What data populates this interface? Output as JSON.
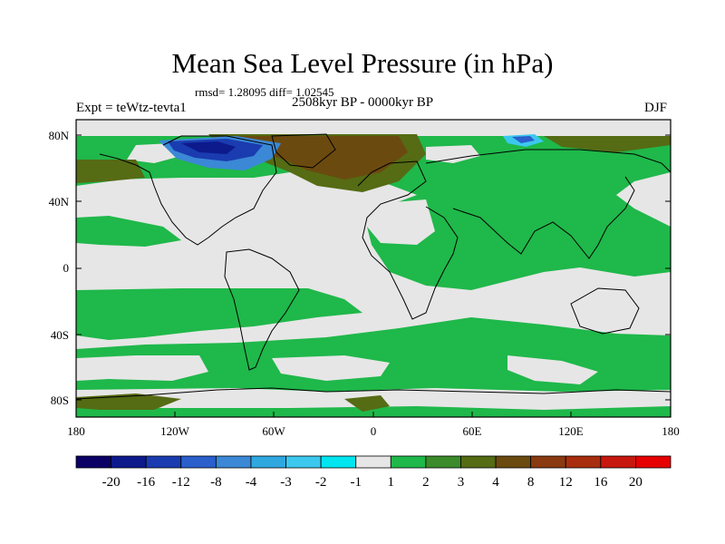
{
  "title": "Mean Sea Level Pressure (in hPa)",
  "stats_line": "rmsd= 1.28095 diff= 1.02545",
  "experiment": "Expt = teWtz-tevta1",
  "period": "2508kyr BP - 0000kyr BP",
  "season": "DJF",
  "lat_ticks": [
    "80N",
    "40N",
    "0",
    "40S",
    "80S"
  ],
  "lon_ticks": [
    "180",
    "120W",
    "60W",
    "0",
    "60E",
    "120E",
    "180"
  ],
  "colorbar": {
    "labels": [
      "-20",
      "-16",
      "-12",
      "-8",
      "-4",
      "-3",
      "-2",
      "-1",
      "1",
      "2",
      "3",
      "4",
      "8",
      "12",
      "16",
      "20"
    ],
    "colors": [
      "#0a0066",
      "#0d1a8c",
      "#1a3cb0",
      "#2a5fcc",
      "#3b88d6",
      "#2fa8e0",
      "#3cc8ee",
      "#00e5f0",
      "#e6e6e6",
      "#1fb84a",
      "#3c8b2a",
      "#556b14",
      "#6b4a0f",
      "#8a3a10",
      "#a82e0e",
      "#c8170e",
      "#e60000"
    ]
  },
  "colors": {
    "ocean_neutral": "#e6e6e6",
    "positive_small": "#1fb84a",
    "positive_mid": "#556b14",
    "positive_high": "#6b4a0f",
    "negative": "#1a3cb0",
    "coast": "#000000"
  }
}
